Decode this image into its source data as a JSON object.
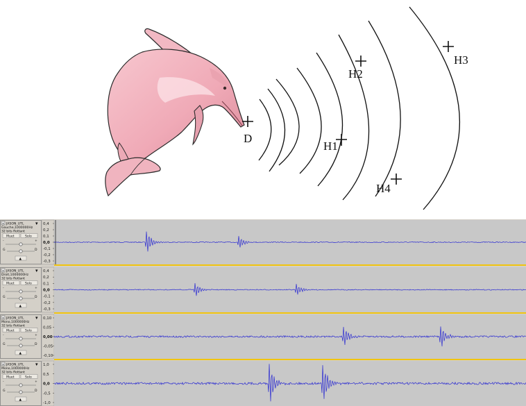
{
  "diagram": {
    "source_label": "D",
    "hydrophones": [
      "H1",
      "H2",
      "H3",
      "H4"
    ]
  },
  "audacity": {
    "tracks": [
      {
        "name": "JASON_UTL",
        "line1": "Gauche,1000000Hz",
        "line2": "32 bits flottant",
        "mute": "Muet",
        "solo": "Solo",
        "pan_left": "G",
        "pan_right": "D",
        "gain_minus": "-",
        "gain_plus": "+",
        "ticks": [
          "0,4",
          "0,2",
          "0,1",
          "0,0",
          "-0,1",
          "-0,2",
          "-0,3"
        ]
      },
      {
        "name": "JASON_UTL",
        "line1": "Droit,1000000Hz",
        "line2": "32 bits flottant",
        "mute": "Muet",
        "solo": "Solo",
        "pan_left": "G",
        "pan_right": "D",
        "gain_minus": "-",
        "gain_plus": "+",
        "ticks": [
          "0,4",
          "0,2",
          "0,1",
          "0,0",
          "-0,1",
          "-0,2",
          "-0,3"
        ]
      },
      {
        "name": "JASON_UTL",
        "line1": "Mono,1000000Hz",
        "line2": "32 bits flottant",
        "mute": "Muet",
        "solo": "Solo",
        "pan_left": "G",
        "pan_right": "D",
        "gain_minus": "-",
        "gain_plus": "+",
        "ticks": [
          "0,10",
          "0,05",
          "0,00",
          "-0,05",
          "-0,10"
        ]
      },
      {
        "name": "JASON_UTL",
        "line1": "Mono,1000000Hz",
        "line2": "32 bits flottant",
        "mute": "Muet",
        "solo": "Solo",
        "pan_left": "G",
        "pan_right": "D",
        "gain_minus": "-",
        "gain_plus": "+",
        "ticks": [
          "1,0",
          "0,5",
          "0,0",
          "-0,5",
          "-1,0"
        ]
      }
    ],
    "colors": {
      "waveform": "#2b2bd2",
      "track_bg": "#c8c8c8",
      "panel_bg": "#d4d0c8"
    }
  }
}
